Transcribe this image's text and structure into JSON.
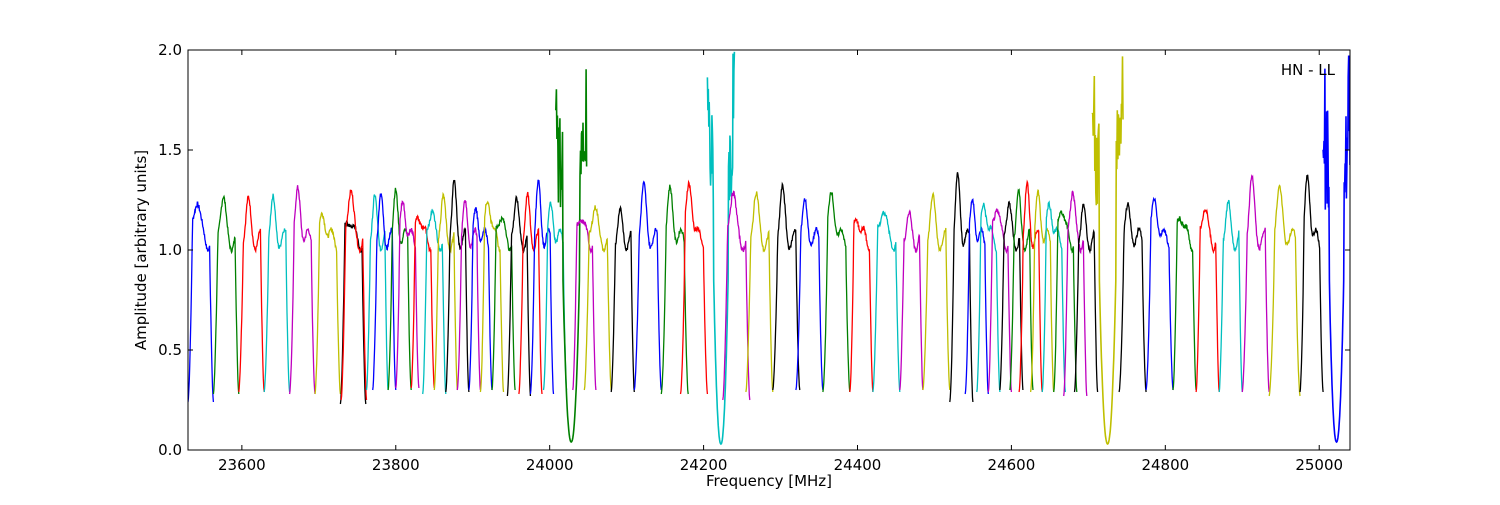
{
  "chart_data": {
    "type": "line",
    "title": "",
    "annotation": "HN - LL",
    "xlabel": "Frequency [MHz]",
    "ylabel": "Amplitude [arbitrary units]",
    "xlim": [
      23530,
      25040
    ],
    "ylim": [
      0.0,
      2.0
    ],
    "xticks": [
      23600,
      23800,
      24000,
      24200,
      24400,
      24600,
      24800,
      25000
    ],
    "yticks": [
      0.0,
      0.5,
      1.0,
      1.5,
      2.0
    ],
    "xtick_labels": [
      "23600",
      "23800",
      "24000",
      "24200",
      "24400",
      "24600",
      "24800",
      "25000"
    ],
    "ytick_labels": [
      "0.0",
      "0.5",
      "1.0",
      "1.5",
      "2.0"
    ],
    "grid": false,
    "legend": "none",
    "series_color_cycle": [
      "#0000ff",
      "#008000",
      "#ff0000",
      "#00bfbf",
      "#bf00bf",
      "#bfbf00",
      "#000000"
    ],
    "series": [
      {
        "start": 23530,
        "end": 23563,
        "peak": 1.29,
        "floor": 0.24,
        "color": "#0000ff"
      },
      {
        "start": 23563,
        "end": 23596,
        "peak": 1.27,
        "floor": 0.28,
        "color": "#008000"
      },
      {
        "start": 23596,
        "end": 23629,
        "peak": 1.22,
        "floor": 0.29,
        "color": "#ff0000"
      },
      {
        "start": 23629,
        "end": 23662,
        "peak": 1.21,
        "floor": 0.29,
        "color": "#00bfbf"
      },
      {
        "start": 23662,
        "end": 23695,
        "peak": 1.27,
        "floor": 0.28,
        "color": "#bf00bf"
      },
      {
        "start": 23695,
        "end": 23728,
        "peak": 1.18,
        "floor": 0.28,
        "color": "#bfbf00"
      },
      {
        "start": 23728,
        "end": 23761,
        "peak": 1.18,
        "floor": 0.23,
        "color": "#000000"
      },
      {
        "start": 23729,
        "end": 23762,
        "peak": 1.32,
        "floor": 0.25,
        "color": "#ff0000"
      },
      {
        "start": 23762,
        "end": 23790,
        "peak": 1.24,
        "floor": 0.3,
        "color": "#00bfbf"
      },
      {
        "start": 23770,
        "end": 23800,
        "peak": 1.22,
        "floor": 0.3,
        "color": "#0000ff"
      },
      {
        "start": 23790,
        "end": 23820,
        "peak": 1.25,
        "floor": 0.3,
        "color": "#008000"
      },
      {
        "start": 23800,
        "end": 23830,
        "peak": 1.23,
        "floor": 0.31,
        "color": "#bf00bf"
      },
      {
        "start": 23820,
        "end": 23850,
        "peak": 1.2,
        "floor": 0.31,
        "color": "#ff0000"
      },
      {
        "start": 23835,
        "end": 23865,
        "peak": 1.22,
        "floor": 0.28,
        "color": "#00bfbf"
      },
      {
        "start": 23850,
        "end": 23880,
        "peak": 1.25,
        "floor": 0.3,
        "color": "#bfbf00"
      },
      {
        "start": 23865,
        "end": 23895,
        "peak": 1.29,
        "floor": 0.29,
        "color": "#000000"
      },
      {
        "start": 23880,
        "end": 23910,
        "peak": 1.19,
        "floor": 0.3,
        "color": "#bf00bf"
      },
      {
        "start": 23895,
        "end": 23925,
        "peak": 1.18,
        "floor": 0.3,
        "color": "#0000ff"
      },
      {
        "start": 23910,
        "end": 23940,
        "peak": 1.28,
        "floor": 0.29,
        "color": "#bfbf00"
      },
      {
        "start": 23925,
        "end": 23955,
        "peak": 1.2,
        "floor": 0.3,
        "color": "#008000"
      },
      {
        "start": 23945,
        "end": 23975,
        "peak": 1.25,
        "floor": 0.27,
        "color": "#000000"
      },
      {
        "start": 23960,
        "end": 23990,
        "peak": 1.23,
        "floor": 0.28,
        "color": "#ff0000"
      },
      {
        "start": 23975,
        "end": 24005,
        "peak": 1.29,
        "floor": 0.28,
        "color": "#0000ff"
      },
      {
        "start": 23992,
        "end": 24022,
        "peak": 1.2,
        "floor": 0.3,
        "color": "#00bfbf"
      },
      {
        "start": 24008,
        "end": 24048,
        "peak": 2.0,
        "floor": 0.04,
        "color": "#008000",
        "spike": true
      },
      {
        "start": 24030,
        "end": 24060,
        "peak": 1.2,
        "floor": 0.3,
        "color": "#bf00bf"
      },
      {
        "start": 24045,
        "end": 24080,
        "peak": 1.22,
        "floor": 0.3,
        "color": "#bfbf00"
      },
      {
        "start": 24080,
        "end": 24110,
        "peak": 1.17,
        "floor": 0.29,
        "color": "#000000"
      },
      {
        "start": 24110,
        "end": 24145,
        "peak": 1.27,
        "floor": 0.3,
        "color": "#0000ff"
      },
      {
        "start": 24145,
        "end": 24180,
        "peak": 1.27,
        "floor": 0.28,
        "color": "#008000"
      },
      {
        "start": 24170,
        "end": 24205,
        "peak": 1.34,
        "floor": 0.28,
        "color": "#ff0000"
      },
      {
        "start": 24205,
        "end": 24240,
        "peak": 2.0,
        "floor": 0.03,
        "color": "#00bfbf",
        "spike": true
      },
      {
        "start": 24225,
        "end": 24260,
        "peak": 1.32,
        "floor": 0.25,
        "color": "#bf00bf"
      },
      {
        "start": 24255,
        "end": 24290,
        "peak": 1.26,
        "floor": 0.29,
        "color": "#bfbf00"
      },
      {
        "start": 24290,
        "end": 24325,
        "peak": 1.26,
        "floor": 0.3,
        "color": "#000000"
      },
      {
        "start": 24320,
        "end": 24355,
        "peak": 1.2,
        "floor": 0.3,
        "color": "#0000ff"
      },
      {
        "start": 24355,
        "end": 24390,
        "peak": 1.28,
        "floor": 0.29,
        "color": "#008000"
      },
      {
        "start": 24390,
        "end": 24420,
        "peak": 1.18,
        "floor": 0.29,
        "color": "#ff0000"
      },
      {
        "start": 24420,
        "end": 24455,
        "peak": 1.23,
        "floor": 0.29,
        "color": "#00bfbf"
      },
      {
        "start": 24455,
        "end": 24485,
        "peak": 1.17,
        "floor": 0.3,
        "color": "#bf00bf"
      },
      {
        "start": 24485,
        "end": 24520,
        "peak": 1.22,
        "floor": 0.3,
        "color": "#bfbf00"
      },
      {
        "start": 24520,
        "end": 24550,
        "peak": 1.32,
        "floor": 0.24,
        "color": "#000000"
      },
      {
        "start": 24540,
        "end": 24570,
        "peak": 1.22,
        "floor": 0.28,
        "color": "#0000ff"
      },
      {
        "start": 24555,
        "end": 24585,
        "peak": 1.25,
        "floor": 0.29,
        "color": "#00bfbf"
      },
      {
        "start": 24570,
        "end": 24600,
        "peak": 1.25,
        "floor": 0.29,
        "color": "#bf00bf"
      },
      {
        "start": 24585,
        "end": 24615,
        "peak": 1.23,
        "floor": 0.3,
        "color": "#000000"
      },
      {
        "start": 24598,
        "end": 24628,
        "peak": 1.25,
        "floor": 0.3,
        "color": "#008000"
      },
      {
        "start": 24610,
        "end": 24640,
        "peak": 1.27,
        "floor": 0.29,
        "color": "#ff0000"
      },
      {
        "start": 24625,
        "end": 24655,
        "peak": 1.25,
        "floor": 0.29,
        "color": "#bfbf00"
      },
      {
        "start": 24640,
        "end": 24670,
        "peak": 1.24,
        "floor": 0.29,
        "color": "#00bfbf"
      },
      {
        "start": 24655,
        "end": 24685,
        "peak": 1.25,
        "floor": 0.29,
        "color": "#008000"
      },
      {
        "start": 24668,
        "end": 24698,
        "peak": 1.31,
        "floor": 0.27,
        "color": "#bf00bf"
      },
      {
        "start": 24682,
        "end": 24712,
        "peak": 1.19,
        "floor": 0.29,
        "color": "#000000"
      },
      {
        "start": 24705,
        "end": 24745,
        "peak": 2.0,
        "floor": 0.03,
        "color": "#bfbf00",
        "spike": true
      },
      {
        "start": 24740,
        "end": 24775,
        "peak": 1.18,
        "floor": 0.29,
        "color": "#000000"
      },
      {
        "start": 24775,
        "end": 24810,
        "peak": 1.25,
        "floor": 0.3,
        "color": "#0000ff"
      },
      {
        "start": 24810,
        "end": 24840,
        "peak": 1.2,
        "floor": 0.3,
        "color": "#008000"
      },
      {
        "start": 24840,
        "end": 24870,
        "peak": 1.24,
        "floor": 0.29,
        "color": "#ff0000"
      },
      {
        "start": 24870,
        "end": 24900,
        "peak": 1.22,
        "floor": 0.29,
        "color": "#00bfbf"
      },
      {
        "start": 24900,
        "end": 24935,
        "peak": 1.31,
        "floor": 0.29,
        "color": "#bf00bf"
      },
      {
        "start": 24935,
        "end": 24975,
        "peak": 1.26,
        "floor": 0.27,
        "color": "#bfbf00"
      },
      {
        "start": 24975,
        "end": 25005,
        "peak": 1.35,
        "floor": 0.29,
        "color": "#000000"
      },
      {
        "start": 25005,
        "end": 25040,
        "peak": 2.0,
        "floor": 0.04,
        "color": "#0000ff",
        "spike": true
      }
    ]
  }
}
